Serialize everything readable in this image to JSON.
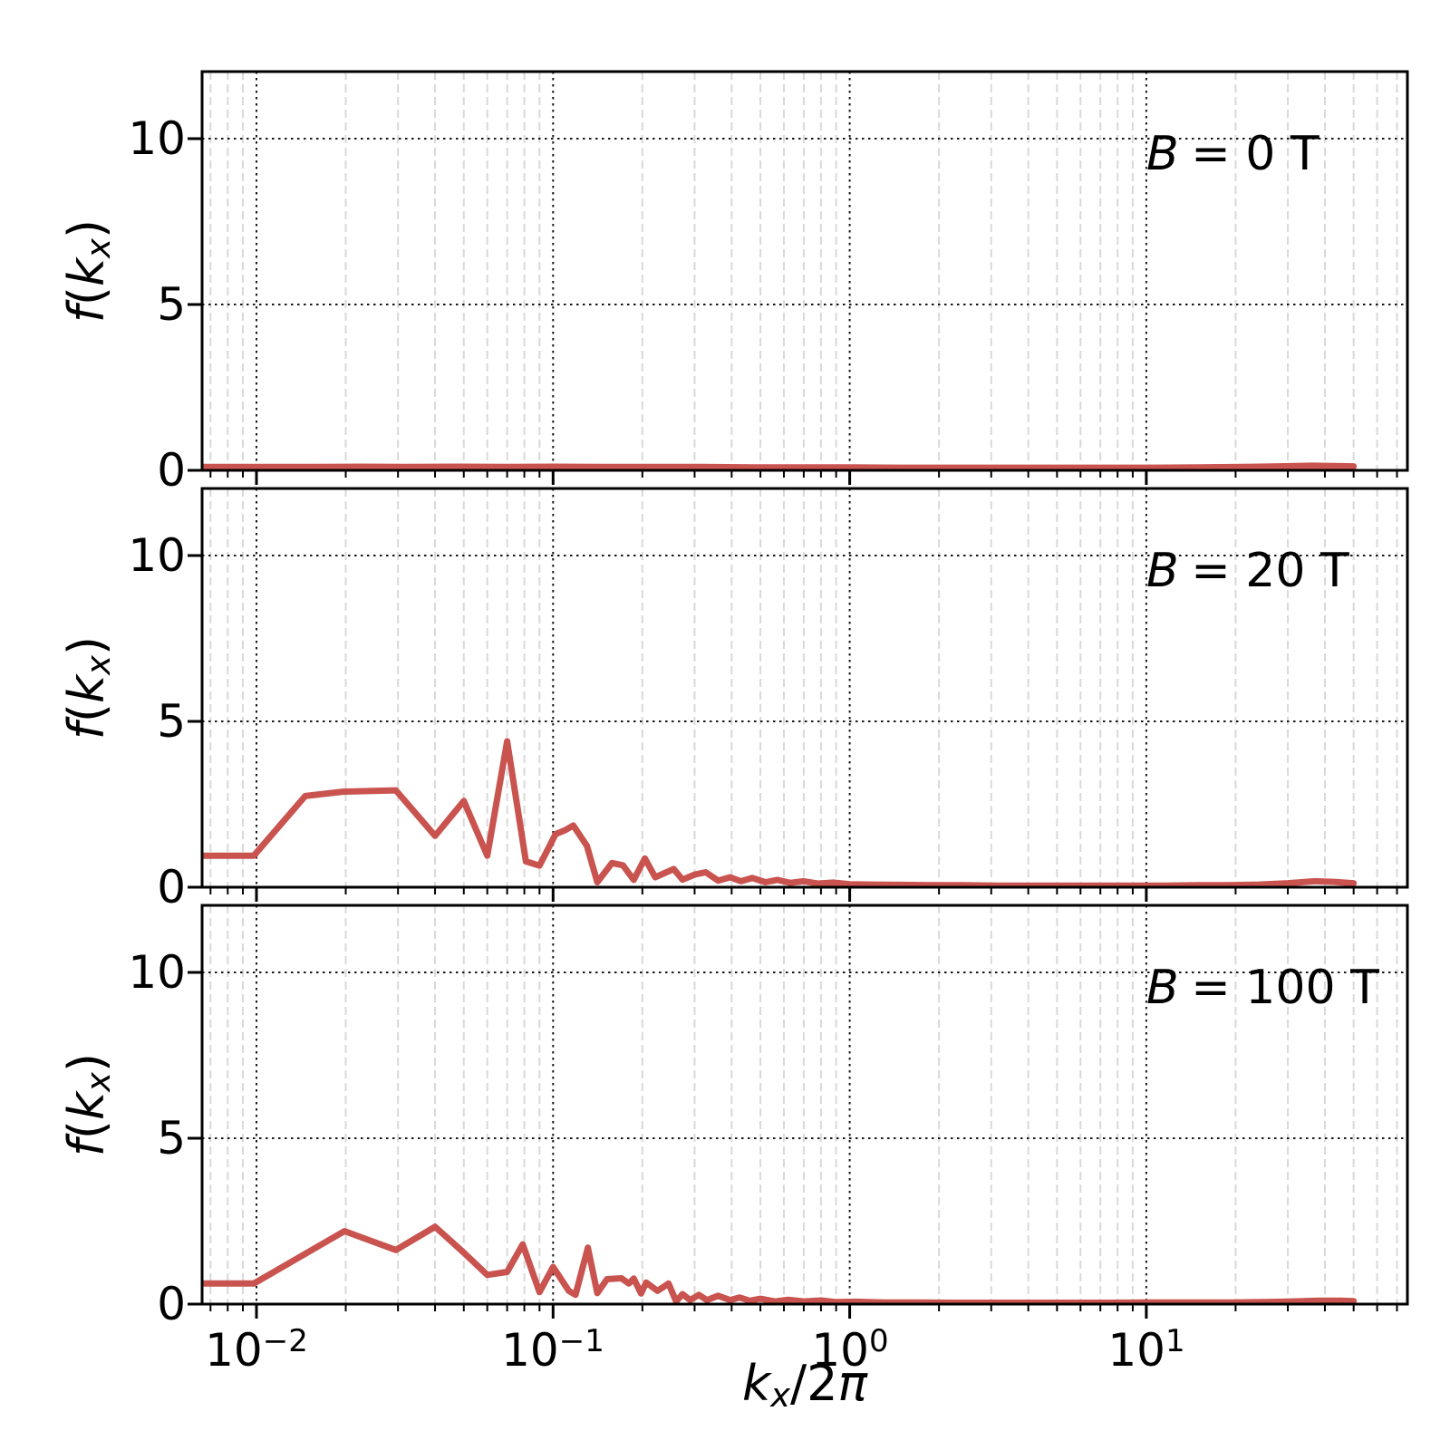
{
  "chart_data": {
    "type": "line",
    "x_scale": "log",
    "grid": {
      "major": "black dotted",
      "minor": "light-gray dashed"
    },
    "line_color": "#c9534f",
    "line_width": 7,
    "xlim": [
      0.0066,
      76
    ],
    "ylim": [
      0,
      12
    ],
    "y_ticks": [
      "0",
      "5",
      "10"
    ],
    "x_major_ticks": [
      0.01,
      0.1,
      1,
      10
    ],
    "x_tick_labels": [
      {
        "base": "10",
        "exp": "−2"
      },
      {
        "base": "10",
        "exp": "−1"
      },
      {
        "base": "10",
        "exp": "0"
      },
      {
        "base": "10",
        "exp": "1"
      }
    ],
    "xlabel": "kx/2π",
    "xlabel_parts": {
      "k": "k",
      "sub": "x",
      "rest": "/2",
      "pi": "π"
    },
    "ylabel": "f(kx)",
    "ylabel_parts": {
      "f": "f",
      "open": "(",
      "k": "k",
      "sub": "x",
      "close": ")"
    },
    "panels": [
      {
        "id": "b-0t",
        "annotation_prefix": "B",
        "annotation_rest": "= 0 T",
        "points": [
          [
            0.0066,
            0.1
          ],
          [
            0.0098,
            0.1
          ],
          [
            0.015,
            0.1
          ],
          [
            0.022,
            0.11
          ],
          [
            0.032,
            0.1
          ],
          [
            0.047,
            0.11
          ],
          [
            0.07,
            0.1
          ],
          [
            0.1,
            0.11
          ],
          [
            0.15,
            0.1
          ],
          [
            0.22,
            0.1
          ],
          [
            0.32,
            0.1
          ],
          [
            0.47,
            0.09
          ],
          [
            0.7,
            0.09
          ],
          [
            1.0,
            0.09
          ],
          [
            1.5,
            0.08
          ],
          [
            2.2,
            0.08
          ],
          [
            3.2,
            0.08
          ],
          [
            4.7,
            0.08
          ],
          [
            7.0,
            0.08
          ],
          [
            10,
            0.08
          ],
          [
            15,
            0.09
          ],
          [
            21,
            0.1
          ],
          [
            28,
            0.12
          ],
          [
            36,
            0.14
          ],
          [
            43,
            0.13
          ],
          [
            50,
            0.12
          ]
        ]
      },
      {
        "id": "b-20t",
        "annotation_prefix": "B",
        "annotation_rest": "= 20 T",
        "points": [
          [
            0.0066,
            0.95
          ],
          [
            0.0098,
            0.95
          ],
          [
            0.0146,
            2.75
          ],
          [
            0.0195,
            2.88
          ],
          [
            0.0295,
            2.92
          ],
          [
            0.04,
            1.55
          ],
          [
            0.05,
            2.6
          ],
          [
            0.06,
            0.95
          ],
          [
            0.07,
            4.4
          ],
          [
            0.081,
            0.78
          ],
          [
            0.09,
            0.65
          ],
          [
            0.102,
            1.6
          ],
          [
            0.11,
            1.72
          ],
          [
            0.117,
            1.86
          ],
          [
            0.13,
            1.25
          ],
          [
            0.141,
            0.15
          ],
          [
            0.158,
            0.73
          ],
          [
            0.172,
            0.66
          ],
          [
            0.187,
            0.22
          ],
          [
            0.204,
            0.87
          ],
          [
            0.221,
            0.3
          ],
          [
            0.255,
            0.55
          ],
          [
            0.273,
            0.23
          ],
          [
            0.3,
            0.38
          ],
          [
            0.327,
            0.45
          ],
          [
            0.36,
            0.2
          ],
          [
            0.395,
            0.3
          ],
          [
            0.43,
            0.18
          ],
          [
            0.47,
            0.28
          ],
          [
            0.52,
            0.15
          ],
          [
            0.57,
            0.22
          ],
          [
            0.63,
            0.13
          ],
          [
            0.7,
            0.18
          ],
          [
            0.78,
            0.11
          ],
          [
            0.88,
            0.14
          ],
          [
            1.0,
            0.09
          ],
          [
            1.2,
            0.08
          ],
          [
            1.5,
            0.07
          ],
          [
            1.9,
            0.06
          ],
          [
            2.4,
            0.06
          ],
          [
            3.1,
            0.05
          ],
          [
            4.0,
            0.05
          ],
          [
            5.2,
            0.05
          ],
          [
            6.8,
            0.05
          ],
          [
            8.8,
            0.05
          ],
          [
            11.5,
            0.05
          ],
          [
            15,
            0.06
          ],
          [
            19,
            0.06
          ],
          [
            24,
            0.08
          ],
          [
            30,
            0.12
          ],
          [
            37,
            0.18
          ],
          [
            43,
            0.16
          ],
          [
            50,
            0.12
          ]
        ]
      },
      {
        "id": "b-100t",
        "annotation_prefix": "B",
        "annotation_rest": "= 100 T",
        "points": [
          [
            0.0066,
            0.62
          ],
          [
            0.0098,
            0.62
          ],
          [
            0.0198,
            2.2
          ],
          [
            0.0295,
            1.63
          ],
          [
            0.04,
            2.33
          ],
          [
            0.05,
            1.55
          ],
          [
            0.06,
            0.88
          ],
          [
            0.07,
            0.97
          ],
          [
            0.079,
            1.8
          ],
          [
            0.09,
            0.36
          ],
          [
            0.1,
            1.12
          ],
          [
            0.113,
            0.4
          ],
          [
            0.119,
            0.28
          ],
          [
            0.131,
            1.7
          ],
          [
            0.141,
            0.33
          ],
          [
            0.152,
            0.75
          ],
          [
            0.17,
            0.78
          ],
          [
            0.18,
            0.62
          ],
          [
            0.187,
            0.77
          ],
          [
            0.198,
            0.32
          ],
          [
            0.206,
            0.65
          ],
          [
            0.225,
            0.4
          ],
          [
            0.245,
            0.62
          ],
          [
            0.26,
            0.08
          ],
          [
            0.273,
            0.3
          ],
          [
            0.29,
            0.12
          ],
          [
            0.31,
            0.28
          ],
          [
            0.33,
            0.12
          ],
          [
            0.36,
            0.25
          ],
          [
            0.395,
            0.12
          ],
          [
            0.425,
            0.2
          ],
          [
            0.46,
            0.1
          ],
          [
            0.5,
            0.16
          ],
          [
            0.56,
            0.08
          ],
          [
            0.62,
            0.13
          ],
          [
            0.7,
            0.08
          ],
          [
            0.8,
            0.11
          ],
          [
            0.9,
            0.06
          ],
          [
            1.05,
            0.07
          ],
          [
            1.3,
            0.05
          ],
          [
            1.7,
            0.05
          ],
          [
            2.2,
            0.04
          ],
          [
            3.0,
            0.04
          ],
          [
            4.0,
            0.04
          ],
          [
            5.5,
            0.04
          ],
          [
            7.5,
            0.04
          ],
          [
            10,
            0.05
          ],
          [
            14,
            0.05
          ],
          [
            19,
            0.05
          ],
          [
            25,
            0.06
          ],
          [
            31,
            0.08
          ],
          [
            38,
            0.1
          ],
          [
            45,
            0.1
          ],
          [
            50,
            0.09
          ]
        ]
      }
    ]
  }
}
